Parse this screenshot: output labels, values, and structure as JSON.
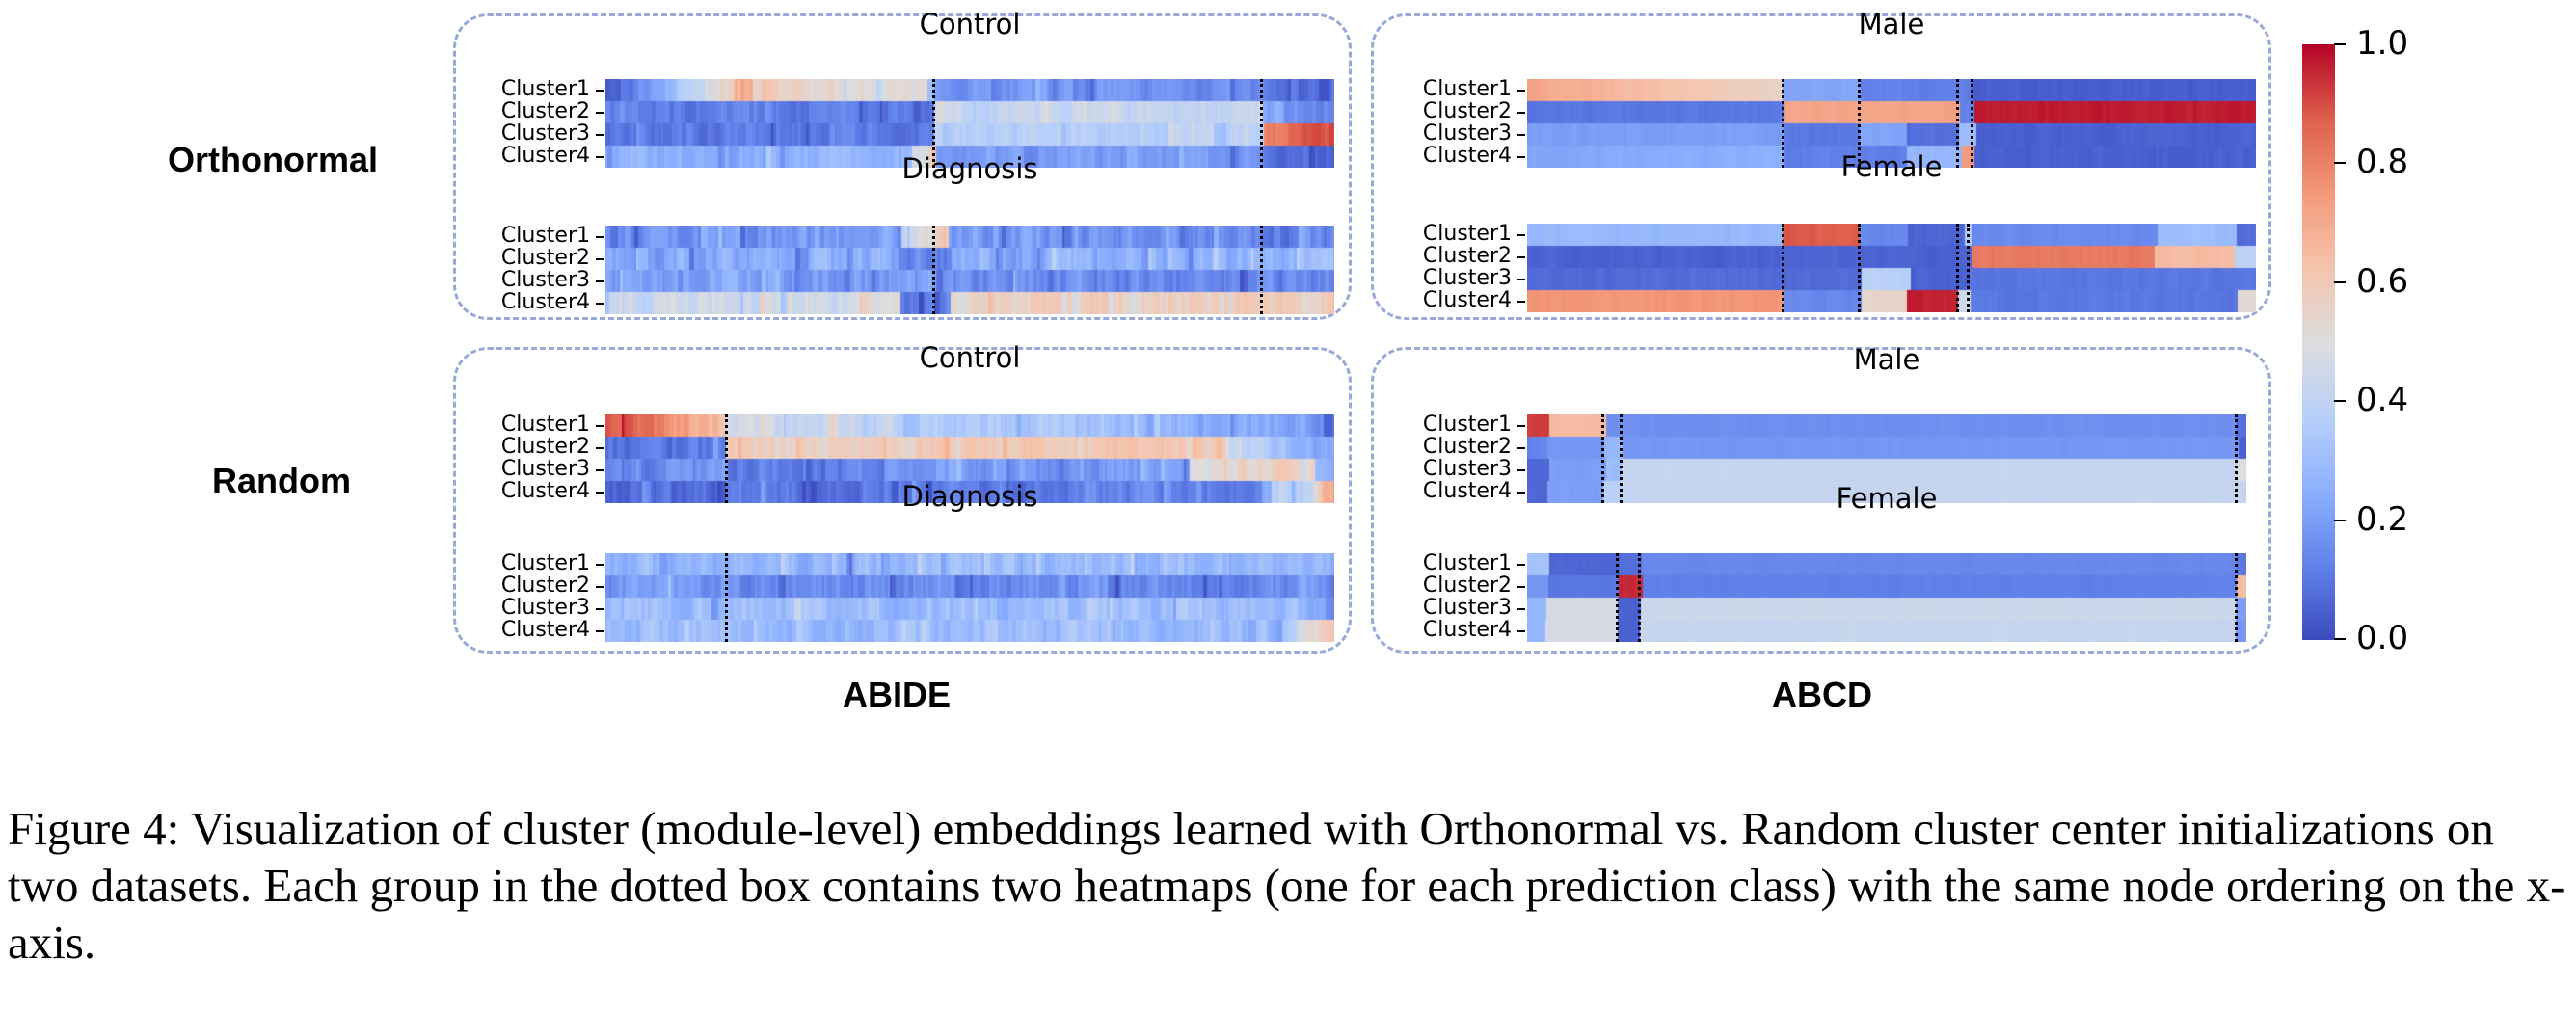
{
  "chart_data": {
    "type": "heatmap",
    "title": "",
    "colormap": "coolwarm",
    "colorbar": {
      "range": [
        0.0,
        1.0
      ],
      "ticks": [
        "1.0",
        "0.8",
        "0.6",
        "0.4",
        "0.2",
        "0.0"
      ],
      "tick_values": [
        1.0,
        0.8,
        0.6,
        0.4,
        0.2,
        0.0
      ],
      "placement": "right"
    },
    "row_groups": [
      "Orthonormal",
      "Random"
    ],
    "column_groups": [
      "ABIDE",
      "ABCD"
    ],
    "ylabels": [
      "Cluster1",
      "Cluster2",
      "Cluster3",
      "Cluster4"
    ],
    "xaxis": "node ordering (fraction of nodes, 0 to 1)",
    "panels": [
      {
        "init": "Orthonormal",
        "dataset": "ABIDE",
        "class": "Control",
        "noise": 0.07,
        "separators": [
          0.45,
          0.9
        ],
        "rows": [
          [
            [
              0,
              0.0,
              0.68
            ],
            [
              0.2,
              0.55,
              0.5
            ],
            [
              0.44,
              0.28,
              0.26
            ],
            [
              0.45,
              0.2,
              0.15
            ],
            [
              0.9,
              0.08,
              0.06
            ],
            [
              1,
              0.05,
              0.05
            ]
          ],
          [
            [
              0,
              0.12,
              0.12
            ],
            [
              0.45,
              0.42,
              0.42
            ],
            [
              0.9,
              0.2,
              0.12
            ],
            [
              1,
              0.1,
              0.1
            ]
          ],
          [
            [
              0,
              0.1,
              0.12
            ],
            [
              0.45,
              0.36,
              0.4
            ],
            [
              0.9,
              0.78,
              0.9
            ],
            [
              1,
              0.9,
              0.9
            ]
          ],
          [
            [
              0,
              0.25,
              0.28
            ],
            [
              0.42,
              0.45,
              0.65
            ],
            [
              0.45,
              0.2,
              0.18
            ],
            [
              0.9,
              0.08,
              0.07
            ],
            [
              1,
              0.07,
              0.07
            ]
          ]
        ]
      },
      {
        "init": "Orthonormal",
        "dataset": "ABIDE",
        "class": "Diagnosis",
        "noise": 0.1,
        "separators": [
          0.45,
          0.9
        ],
        "rows": [
          [
            [
              0,
              0.16,
              0.2
            ],
            [
              0.4,
              0.45,
              0.6
            ],
            [
              0.47,
              0.2,
              0.14
            ],
            [
              1,
              0.14,
              0.14
            ]
          ],
          [
            [
              0,
              0.24,
              0.24
            ],
            [
              0.4,
              0.12,
              0.14
            ],
            [
              0.47,
              0.25,
              0.26
            ],
            [
              1,
              0.26,
              0.26
            ]
          ],
          [
            [
              0,
              0.22,
              0.2
            ],
            [
              0.45,
              0.15,
              0.14
            ],
            [
              1,
              0.14,
              0.14
            ]
          ],
          [
            [
              0,
              0.45,
              0.48
            ],
            [
              0.4,
              0.12,
              0.12
            ],
            [
              0.47,
              0.55,
              0.6
            ],
            [
              1,
              0.6,
              0.6
            ]
          ]
        ]
      },
      {
        "init": "Orthonormal",
        "dataset": "ABCD",
        "class": "Male",
        "noise": 0.02,
        "separators": [
          0.35,
          0.455,
          0.59,
          0.61
        ],
        "rows": [
          [
            [
              0,
              0.72,
              0.55
            ],
            [
              0.35,
              0.22,
              0.22
            ],
            [
              0.455,
              0.12,
              0.12
            ],
            [
              0.61,
              0.04,
              0.04
            ],
            [
              1,
              0.04,
              0.04
            ]
          ],
          [
            [
              0,
              0.1,
              0.1
            ],
            [
              0.35,
              0.72,
              0.72
            ],
            [
              0.59,
              0.12,
              0.12
            ],
            [
              0.61,
              0.97,
              0.97
            ],
            [
              1,
              0.97,
              0.97
            ]
          ],
          [
            [
              0,
              0.2,
              0.2
            ],
            [
              0.35,
              0.1,
              0.1
            ],
            [
              0.455,
              0.22,
              0.22
            ],
            [
              0.52,
              0.08,
              0.08
            ],
            [
              0.59,
              0.3,
              0.3
            ],
            [
              0.61,
              0.05,
              0.05
            ],
            [
              1,
              0.05,
              0.05
            ]
          ],
          [
            [
              0,
              0.22,
              0.25
            ],
            [
              0.35,
              0.12,
              0.12
            ],
            [
              0.52,
              0.28,
              0.28
            ],
            [
              0.59,
              0.75,
              0.75
            ],
            [
              0.61,
              0.05,
              0.05
            ],
            [
              1,
              0.05,
              0.05
            ]
          ]
        ]
      },
      {
        "init": "Orthonormal",
        "dataset": "ABCD",
        "class": "Female",
        "noise": 0.02,
        "separators": [
          0.35,
          0.455,
          0.59,
          0.605
        ],
        "rows": [
          [
            [
              0,
              0.28,
              0.28
            ],
            [
              0.35,
              0.88,
              0.88
            ],
            [
              0.455,
              0.14,
              0.14
            ],
            [
              0.52,
              0.06,
              0.06
            ],
            [
              0.6,
              0.35,
              0.35
            ],
            [
              0.605,
              0.15,
              0.15
            ],
            [
              0.86,
              0.3,
              0.3
            ],
            [
              0.97,
              0.08,
              0.08
            ],
            [
              1,
              0.08,
              0.08
            ]
          ],
          [
            [
              0,
              0.05,
              0.05
            ],
            [
              0.605,
              0.82,
              0.82
            ],
            [
              0.86,
              0.65,
              0.65
            ],
            [
              0.97,
              0.4,
              0.4
            ],
            [
              1,
              0.4,
              0.4
            ]
          ],
          [
            [
              0,
              0.07,
              0.07
            ],
            [
              0.455,
              0.38,
              0.38
            ],
            [
              0.52,
              0.05,
              0.05
            ],
            [
              0.605,
              0.1,
              0.1
            ],
            [
              1,
              0.1,
              0.1
            ]
          ],
          [
            [
              0,
              0.76,
              0.76
            ],
            [
              0.35,
              0.14,
              0.14
            ],
            [
              0.455,
              0.55,
              0.55
            ],
            [
              0.52,
              0.96,
              0.96
            ],
            [
              0.59,
              0.45,
              0.45
            ],
            [
              0.605,
              0.1,
              0.1
            ],
            [
              0.95,
              0.1,
              0.1
            ],
            [
              0.97,
              0.52,
              0.52
            ],
            [
              1,
              0.52,
              0.52
            ]
          ]
        ]
      },
      {
        "init": "Random",
        "dataset": "ABIDE",
        "class": "Control",
        "noise": 0.08,
        "separators": [
          0.165
        ],
        "rows": [
          [
            [
              0,
              0.95,
              0.62
            ],
            [
              0.165,
              0.45,
              0.22
            ],
            [
              0.96,
              0.18,
              0.07
            ],
            [
              1,
              0.07,
              0.07
            ]
          ],
          [
            [
              0,
              0.08,
              0.12
            ],
            [
              0.165,
              0.55,
              0.62
            ],
            [
              0.85,
              0.45,
              0.2
            ],
            [
              1,
              0.2,
              0.2
            ]
          ],
          [
            [
              0,
              0.1,
              0.2
            ],
            [
              0.165,
              0.12,
              0.2
            ],
            [
              0.8,
              0.5,
              0.6
            ],
            [
              0.97,
              0.2,
              0.2
            ],
            [
              1,
              0.2,
              0.2
            ]
          ],
          [
            [
              0,
              0.06,
              0.08
            ],
            [
              0.165,
              0.1,
              0.14
            ],
            [
              0.9,
              0.25,
              0.45
            ],
            [
              0.97,
              0.55,
              0.85
            ],
            [
              1,
              0.85,
              0.85
            ]
          ]
        ]
      },
      {
        "init": "Random",
        "dataset": "ABIDE",
        "class": "Diagnosis",
        "noise": 0.09,
        "separators": [
          0.165
        ],
        "rows": [
          [
            [
              0,
              0.28,
              0.28
            ],
            [
              1,
              0.24,
              0.24
            ]
          ],
          [
            [
              0,
              0.16,
              0.16
            ],
            [
              1,
              0.18,
              0.18
            ]
          ],
          [
            [
              0,
              0.3,
              0.3
            ],
            [
              0.95,
              0.25,
              0.15
            ],
            [
              1,
              0.15,
              0.15
            ]
          ],
          [
            [
              0,
              0.3,
              0.3
            ],
            [
              0.92,
              0.3,
              0.45
            ],
            [
              0.96,
              0.55,
              0.58
            ],
            [
              1,
              0.58,
              0.58
            ]
          ]
        ]
      },
      {
        "init": "Random",
        "dataset": "ABCD",
        "class": "Male",
        "noise": 0.01,
        "separators": [
          0.105,
          0.13,
          0.985
        ],
        "rows": [
          [
            [
              0,
              0.92,
              0.92
            ],
            [
              0.025,
              0.65,
              0.65
            ],
            [
              0.105,
              0.16,
              0.16
            ],
            [
              0.985,
              0.08,
              0.08
            ],
            [
              1,
              0.08,
              0.08
            ]
          ],
          [
            [
              0,
              0.12,
              0.14
            ],
            [
              0.025,
              0.18,
              0.18
            ],
            [
              0.105,
              0.28,
              0.28
            ],
            [
              0.13,
              0.18,
              0.18
            ],
            [
              0.985,
              0.05,
              0.05
            ],
            [
              1,
              0.05,
              0.05
            ]
          ],
          [
            [
              0,
              0.06,
              0.06
            ],
            [
              0.025,
              0.2,
              0.2
            ],
            [
              0.105,
              0.3,
              0.3
            ],
            [
              0.13,
              0.42,
              0.42
            ],
            [
              0.985,
              0.5,
              0.5
            ],
            [
              1,
              0.5,
              0.5
            ]
          ],
          [
            [
              0,
              0.06,
              0.06
            ],
            [
              0.025,
              0.2,
              0.2
            ],
            [
              0.105,
              0.38,
              0.38
            ],
            [
              0.13,
              0.42,
              0.42
            ],
            [
              0.985,
              0.42,
              0.42
            ],
            [
              1,
              0.42,
              0.42
            ]
          ]
        ]
      },
      {
        "init": "Random",
        "dataset": "ABCD",
        "class": "Female",
        "noise": 0.01,
        "separators": [
          0.125,
          0.155,
          0.985
        ],
        "rows": [
          [
            [
              0,
              0.32,
              0.32
            ],
            [
              0.025,
              0.06,
              0.06
            ],
            [
              0.125,
              0.08,
              0.08
            ],
            [
              0.155,
              0.14,
              0.14
            ],
            [
              0.985,
              0.1,
              0.1
            ],
            [
              1,
              0.1,
              0.1
            ]
          ],
          [
            [
              0,
              0.18,
              0.18
            ],
            [
              0.025,
              0.1,
              0.1
            ],
            [
              0.125,
              0.95,
              0.95
            ],
            [
              0.155,
              0.12,
              0.12
            ],
            [
              0.985,
              0.65,
              0.65
            ],
            [
              1,
              0.65,
              0.65
            ]
          ],
          [
            [
              0,
              0.28,
              0.28
            ],
            [
              0.025,
              0.47,
              0.47
            ],
            [
              0.125,
              0.05,
              0.05
            ],
            [
              0.155,
              0.44,
              0.44
            ],
            [
              0.985,
              0.2,
              0.2
            ],
            [
              1,
              0.2,
              0.2
            ]
          ],
          [
            [
              0,
              0.28,
              0.28
            ],
            [
              0.025,
              0.47,
              0.47
            ],
            [
              0.125,
              0.05,
              0.05
            ],
            [
              0.155,
              0.42,
              0.42
            ],
            [
              0.985,
              0.18,
              0.18
            ],
            [
              1,
              0.18,
              0.18
            ]
          ]
        ]
      }
    ]
  },
  "labels": {
    "rows": [
      "Orthonormal",
      "Random"
    ],
    "columns": [
      "ABIDE",
      "ABCD"
    ],
    "panel_titles": [
      "Control",
      "Diagnosis",
      "Male",
      "Female",
      "Control",
      "Diagnosis",
      "Male",
      "Female"
    ],
    "cluster_labels": [
      "Cluster1",
      "Cluster2",
      "Cluster3",
      "Cluster4"
    ]
  },
  "caption": {
    "text": "Figure 4: Visualization of cluster (module-level) embeddings learned with Orthonormal vs. Random cluster center initializations on two datasets. Each group in the dotted box contains two heatmaps (one for each prediction class) with the same node ordering on the x-axis."
  }
}
